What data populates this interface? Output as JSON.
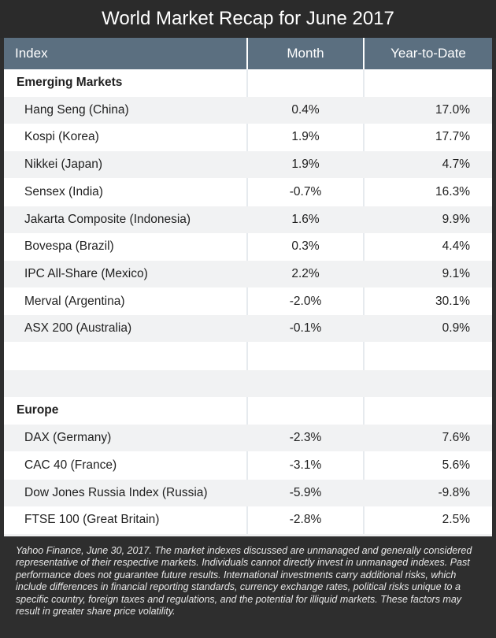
{
  "title": "World Market Recap for June 2017",
  "columns": [
    "Index",
    "Month",
    "Year-to-Date"
  ],
  "sections": [
    {
      "name": "Emerging Markets",
      "rows": [
        {
          "index": "Hang Seng (China)",
          "month": "0.4%",
          "ytd": "17.0%"
        },
        {
          "index": "Kospi (Korea)",
          "month": "1.9%",
          "ytd": "17.7%"
        },
        {
          "index": "Nikkei (Japan)",
          "month": "1.9%",
          "ytd": "4.7%"
        },
        {
          "index": "Sensex (India)",
          "month": "-0.7%",
          "ytd": "16.3%"
        },
        {
          "index": "Jakarta Composite (Indonesia)",
          "month": "1.6%",
          "ytd": "9.9%"
        },
        {
          "index": "Bovespa (Brazil)",
          "month": "0.3%",
          "ytd": "4.4%"
        },
        {
          "index": "IPC All-Share (Mexico)",
          "month": "2.2%",
          "ytd": "9.1%"
        },
        {
          "index": "Merval (Argentina)",
          "month": "-2.0%",
          "ytd": "30.1%"
        },
        {
          "index": "ASX 200 (Australia)",
          "month": "-0.1%",
          "ytd": "0.9%"
        }
      ]
    },
    {
      "name": "Europe",
      "rows": [
        {
          "index": "DAX (Germany)",
          "month": "-2.3%",
          "ytd": "7.6%"
        },
        {
          "index": "CAC 40 (France)",
          "month": "-3.1%",
          "ytd": "5.6%"
        },
        {
          "index": "Dow Jones Russia Index (Russia)",
          "month": "-5.9%",
          "ytd": "-9.8%"
        },
        {
          "index": "FTSE 100 (Great Britain)",
          "month": "-2.8%",
          "ytd": "2.5%"
        }
      ]
    }
  ],
  "footnote": "Yahoo Finance, June 30, 2017. The market indexes discussed are unmanaged and generally considered representative of their respective markets. Individuals cannot directly invest in unmanaged indexes. Past performance does not guarantee future results. International investments carry additional risks, which include differences in financial reporting standards, currency exchange rates, political risks unique to a specific country, foreign taxes and regulations, and the potential for illiquid markets. These factors may result in greater share price volatility.",
  "colors": {
    "header_bg": "#5b6f80",
    "title_bg": "#2b2b2b",
    "alt_row_bg": "#f1f2f3"
  }
}
